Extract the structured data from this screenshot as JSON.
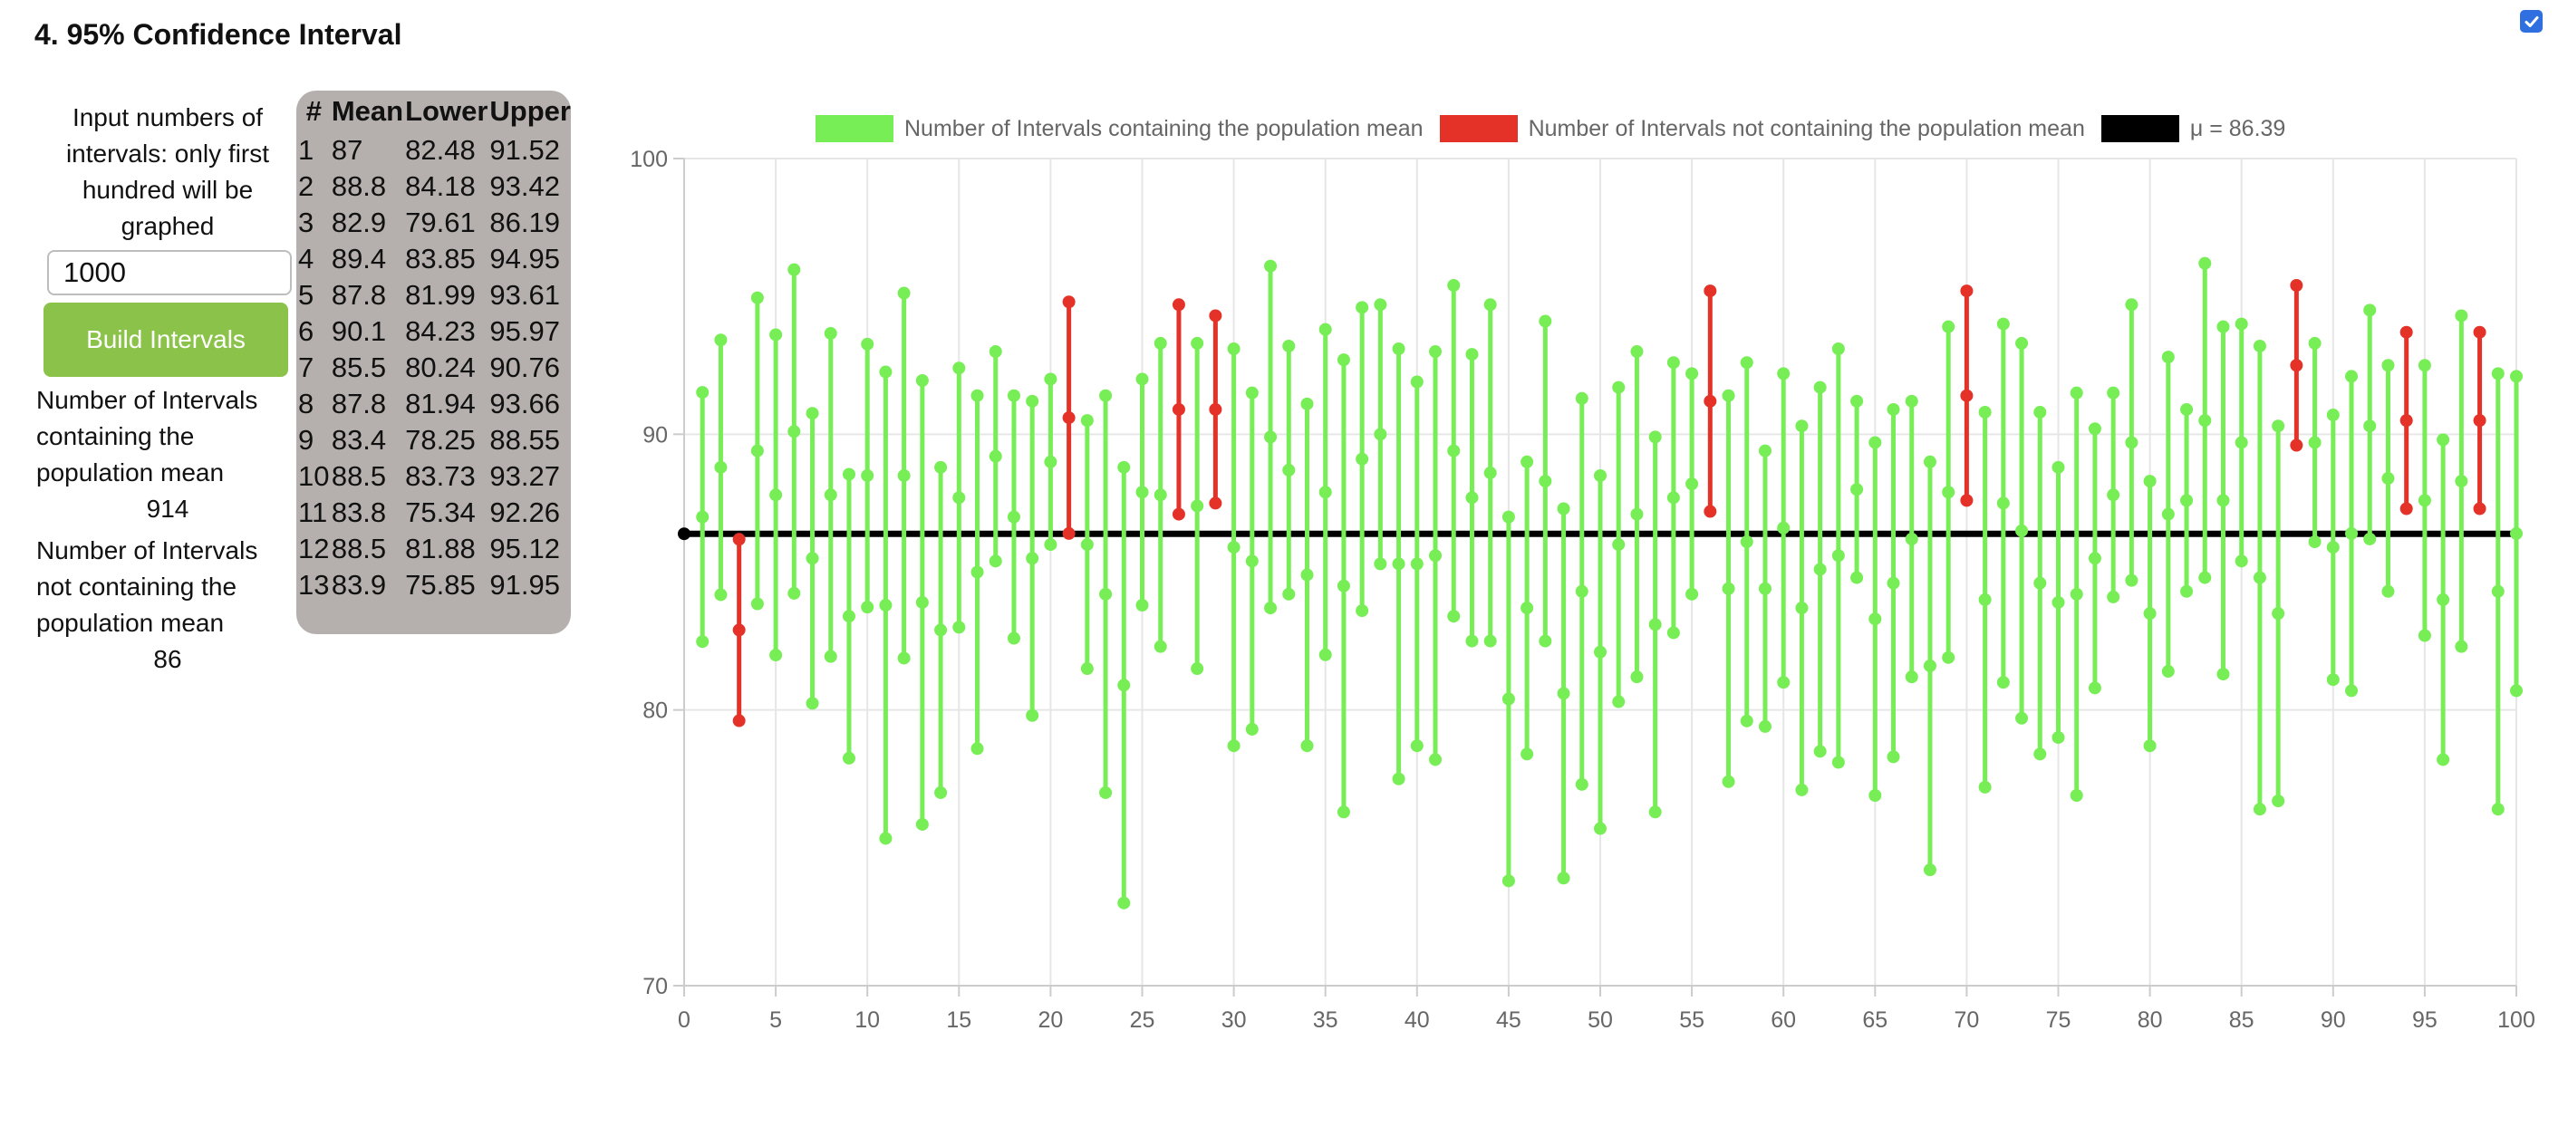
{
  "page": {
    "title": "4. 95% Confidence Interval"
  },
  "top_checkbox": {
    "checked": true
  },
  "controls": {
    "prompt": "Input numbers of intervals: only first hundred will be graphed",
    "input_value": "1000",
    "build_button": "Build Intervals",
    "containing_label": "Number of Intervals containing the population mean",
    "containing_value": "914",
    "not_containing_label": "Number of Intervals not containing the population mean",
    "not_containing_value": "86"
  },
  "table": {
    "headers": [
      "#",
      "Mean",
      "Lower",
      "Upper"
    ],
    "rows": [
      [
        "1",
        "87",
        "82.48",
        "91.52"
      ],
      [
        "2",
        "88.8",
        "84.18",
        "93.42"
      ],
      [
        "3",
        "82.9",
        "79.61",
        "86.19"
      ],
      [
        "4",
        "89.4",
        "83.85",
        "94.95"
      ],
      [
        "5",
        "87.8",
        "81.99",
        "93.61"
      ],
      [
        "6",
        "90.1",
        "84.23",
        "95.97"
      ],
      [
        "7",
        "85.5",
        "80.24",
        "90.76"
      ],
      [
        "8",
        "87.8",
        "81.94",
        "93.66"
      ],
      [
        "9",
        "83.4",
        "78.25",
        "88.55"
      ],
      [
        "10",
        "88.5",
        "83.73",
        "93.27"
      ],
      [
        "11",
        "83.8",
        "75.34",
        "92.26"
      ],
      [
        "12",
        "88.5",
        "81.88",
        "95.12"
      ],
      [
        "13",
        "83.9",
        "75.85",
        "91.95"
      ]
    ]
  },
  "colors": {
    "contain": "#77ee55",
    "notContain": "#e53228",
    "mu": "#000000"
  },
  "chart_data": {
    "type": "errorbar",
    "legend": [
      "Number of Intervals containing the population mean",
      "Number of Intervals not containing the population mean",
      "μ = 86.39"
    ],
    "mu": 86.39,
    "xlim": [
      0,
      100
    ],
    "ylim": [
      70,
      100
    ],
    "xticks": [
      "0",
      "5",
      "10",
      "15",
      "20",
      "25",
      "30",
      "35",
      "40",
      "45",
      "50",
      "55",
      "60",
      "65",
      "70",
      "75",
      "80",
      "85",
      "90",
      "95",
      "100"
    ],
    "yticks": [
      "70",
      "80",
      "90",
      "100"
    ],
    "grid": true,
    "legend_position": "top",
    "intervals": [
      [
        1,
        82.48,
        87,
        91.52
      ],
      [
        2,
        84.18,
        88.8,
        93.42
      ],
      [
        3,
        79.61,
        82.9,
        86.19
      ],
      [
        4,
        83.85,
        89.4,
        94.95
      ],
      [
        5,
        81.99,
        87.8,
        93.61
      ],
      [
        6,
        84.23,
        90.1,
        95.97
      ],
      [
        7,
        80.24,
        85.5,
        90.76
      ],
      [
        8,
        81.94,
        87.8,
        93.66
      ],
      [
        9,
        78.25,
        83.4,
        88.55
      ],
      [
        10,
        83.73,
        88.5,
        93.27
      ],
      [
        11,
        75.34,
        83.8,
        92.26
      ],
      [
        12,
        81.88,
        88.5,
        95.12
      ],
      [
        13,
        75.85,
        83.9,
        91.95
      ],
      [
        14,
        77.0,
        82.9,
        88.8
      ],
      [
        15,
        83.0,
        87.7,
        92.4
      ],
      [
        16,
        78.6,
        85.0,
        91.4
      ],
      [
        17,
        85.4,
        89.2,
        93.0
      ],
      [
        18,
        82.6,
        87.0,
        91.4
      ],
      [
        19,
        79.8,
        85.5,
        91.2
      ],
      [
        20,
        86.0,
        89.0,
        92.0
      ],
      [
        21,
        86.4,
        90.6,
        94.8
      ],
      [
        22,
        81.5,
        86.0,
        90.5
      ],
      [
        23,
        77.0,
        84.2,
        91.4
      ],
      [
        24,
        73.0,
        80.9,
        88.8
      ],
      [
        25,
        83.8,
        87.9,
        92.0
      ],
      [
        26,
        82.3,
        87.8,
        93.3
      ],
      [
        27,
        87.1,
        90.9,
        94.7
      ],
      [
        28,
        81.5,
        87.4,
        93.3
      ],
      [
        29,
        87.5,
        90.9,
        94.3
      ],
      [
        30,
        78.7,
        85.9,
        93.1
      ],
      [
        31,
        79.3,
        85.4,
        91.5
      ],
      [
        32,
        83.7,
        89.9,
        96.1
      ],
      [
        33,
        84.2,
        88.7,
        93.2
      ],
      [
        34,
        78.7,
        84.9,
        91.1
      ],
      [
        35,
        82.0,
        87.9,
        93.8
      ],
      [
        36,
        76.3,
        84.5,
        92.7
      ],
      [
        37,
        83.6,
        89.1,
        94.6
      ],
      [
        38,
        85.3,
        90.0,
        94.7
      ],
      [
        39,
        77.5,
        85.3,
        93.1
      ],
      [
        40,
        78.7,
        85.3,
        91.9
      ],
      [
        41,
        78.2,
        85.6,
        93.0
      ],
      [
        42,
        83.4,
        89.4,
        95.4
      ],
      [
        43,
        82.5,
        87.7,
        92.9
      ],
      [
        44,
        82.5,
        88.6,
        94.7
      ],
      [
        45,
        73.8,
        80.4,
        87.0
      ],
      [
        46,
        78.4,
        83.7,
        89.0
      ],
      [
        47,
        82.5,
        88.3,
        94.1
      ],
      [
        48,
        73.9,
        80.6,
        87.3
      ],
      [
        49,
        77.3,
        84.3,
        91.3
      ],
      [
        50,
        75.7,
        82.1,
        88.5
      ],
      [
        51,
        80.3,
        86.0,
        91.7
      ],
      [
        52,
        81.2,
        87.1,
        93.0
      ],
      [
        53,
        76.3,
        83.1,
        89.9
      ],
      [
        54,
        82.8,
        87.7,
        92.6
      ],
      [
        55,
        84.2,
        88.2,
        92.2
      ],
      [
        56,
        87.2,
        91.2,
        95.2
      ],
      [
        57,
        77.4,
        84.4,
        91.4
      ],
      [
        58,
        79.6,
        86.1,
        92.6
      ],
      [
        59,
        79.4,
        84.4,
        89.4
      ],
      [
        60,
        81.0,
        86.6,
        92.2
      ],
      [
        61,
        77.1,
        83.7,
        90.3
      ],
      [
        62,
        78.5,
        85.1,
        91.7
      ],
      [
        63,
        78.1,
        85.6,
        93.1
      ],
      [
        64,
        84.8,
        88.0,
        91.2
      ],
      [
        65,
        76.9,
        83.3,
        89.7
      ],
      [
        66,
        78.3,
        84.6,
        90.9
      ],
      [
        67,
        81.2,
        86.2,
        91.2
      ],
      [
        68,
        74.2,
        81.6,
        89.0
      ],
      [
        69,
        81.9,
        87.9,
        93.9
      ],
      [
        70,
        87.6,
        91.4,
        95.2
      ],
      [
        71,
        77.2,
        84.0,
        90.8
      ],
      [
        72,
        81.0,
        87.5,
        94.0
      ],
      [
        73,
        79.7,
        86.5,
        93.3
      ],
      [
        74,
        78.4,
        84.6,
        90.8
      ],
      [
        75,
        79.0,
        83.9,
        88.8
      ],
      [
        76,
        76.9,
        84.2,
        91.5
      ],
      [
        77,
        80.8,
        85.5,
        90.2
      ],
      [
        78,
        84.1,
        87.8,
        91.5
      ],
      [
        79,
        84.7,
        89.7,
        94.7
      ],
      [
        80,
        78.7,
        83.5,
        88.3
      ],
      [
        81,
        81.4,
        87.1,
        92.8
      ],
      [
        82,
        84.3,
        87.6,
        90.9
      ],
      [
        83,
        84.8,
        90.5,
        96.2
      ],
      [
        84,
        81.3,
        87.6,
        93.9
      ],
      [
        85,
        85.4,
        89.7,
        94.0
      ],
      [
        86,
        76.4,
        84.8,
        93.2
      ],
      [
        87,
        76.7,
        83.5,
        90.3
      ],
      [
        88,
        89.6,
        92.5,
        95.4
      ],
      [
        89,
        86.1,
        89.7,
        93.3
      ],
      [
        90,
        81.1,
        85.9,
        90.7
      ],
      [
        91,
        80.7,
        86.4,
        92.1
      ],
      [
        92,
        86.2,
        90.3,
        94.5
      ],
      [
        93,
        84.3,
        88.4,
        92.5
      ],
      [
        94,
        87.3,
        90.5,
        93.7
      ],
      [
        95,
        82.7,
        87.6,
        92.5
      ],
      [
        96,
        78.2,
        84.0,
        89.8
      ],
      [
        97,
        82.3,
        88.3,
        94.3
      ],
      [
        98,
        87.3,
        90.5,
        93.7
      ],
      [
        99,
        76.4,
        84.3,
        92.2
      ],
      [
        100,
        80.7,
        86.4,
        92.1
      ]
    ]
  }
}
